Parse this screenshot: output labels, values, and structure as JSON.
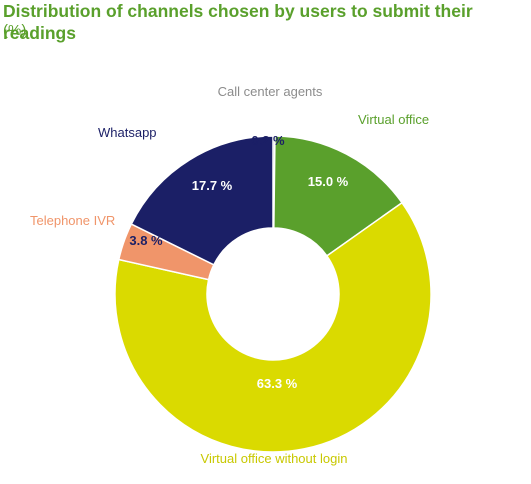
{
  "chart_data": {
    "type": "pie",
    "title": "Distribution of channels chosen by users to submit their readings",
    "subtitle": "(%)",
    "style": "donut",
    "unit": "%",
    "categories": [
      "Call center agents",
      "Virtual office",
      "Virtual office without login",
      "Telephone IVR",
      "Whatsapp"
    ],
    "values": [
      0.2,
      15.0,
      63.3,
      3.8,
      17.7
    ],
    "value_labels": [
      "0.2 %",
      "15.0 %",
      "63.3 %",
      "3.8 %",
      "17.7 %"
    ],
    "colors": [
      "#7f7f7f",
      "#5aa02c",
      "#dada00",
      "#f0956a",
      "#1b1f66"
    ],
    "label_colors": [
      "#8c8c8c",
      "#5aa02c",
      "#c8c800",
      "#f0956a",
      "#1b1f66"
    ],
    "value_label_colors": [
      "#1b1f66",
      "#ffffff",
      "#ffffff",
      "#1b1f66",
      "#ffffff"
    ]
  }
}
